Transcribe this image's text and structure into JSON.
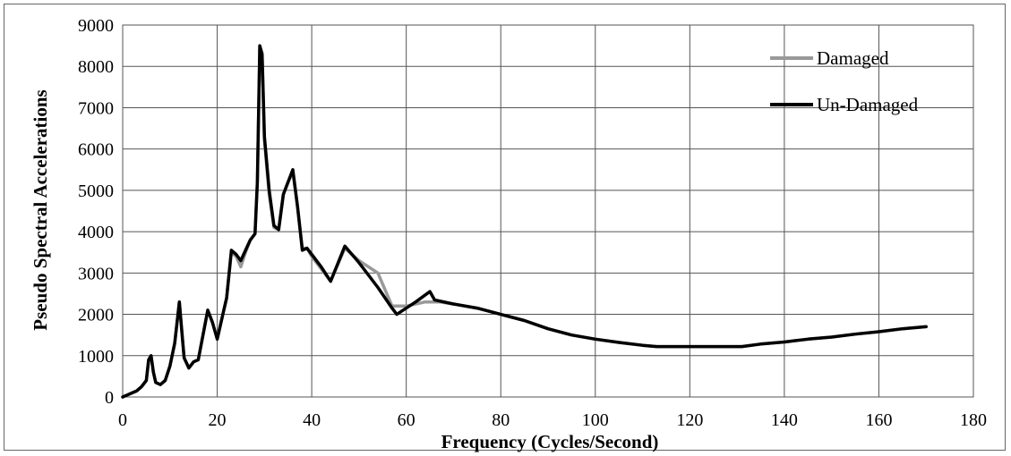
{
  "chart_data": {
    "type": "line",
    "title": "",
    "xlabel": "Frequency (Cycles/Second)",
    "ylabel": "Pseudo Spectral Accelerations",
    "xlim": [
      0,
      180
    ],
    "ylim": [
      0,
      9000
    ],
    "xticks": [
      0,
      20,
      40,
      60,
      80,
      100,
      120,
      140,
      160,
      180
    ],
    "yticks": [
      0,
      1000,
      2000,
      3000,
      4000,
      5000,
      6000,
      7000,
      8000,
      9000
    ],
    "grid": true,
    "legend_position": "top-right",
    "series": [
      {
        "name": "Damaged",
        "color": "#999999",
        "x": [
          0,
          1,
          2,
          3,
          4,
          5,
          5.5,
          6,
          6.5,
          7,
          8,
          9,
          10,
          11,
          12,
          12.5,
          13,
          14,
          15,
          16,
          17,
          18,
          19,
          20,
          21,
          22,
          23,
          24,
          25,
          26,
          27,
          28,
          28.5,
          29,
          29.5,
          30,
          31,
          32,
          33,
          34,
          35,
          36,
          37,
          38,
          39,
          40,
          42,
          44,
          47,
          50,
          54,
          57,
          60,
          64,
          65,
          67,
          70,
          75,
          80,
          85,
          90,
          95,
          100,
          105,
          110,
          113,
          115,
          120,
          125,
          131,
          135,
          140,
          145,
          150,
          155,
          160,
          165,
          170
        ],
        "y": [
          0,
          50,
          100,
          150,
          250,
          400,
          900,
          1000,
          600,
          350,
          300,
          400,
          750,
          1300,
          2300,
          1600,
          950,
          700,
          850,
          900,
          1500,
          2100,
          1800,
          1400,
          1900,
          2400,
          3500,
          3400,
          3150,
          3500,
          3800,
          3950,
          5200,
          8450,
          8200,
          6200,
          4900,
          4100,
          4050,
          4900,
          5200,
          5450,
          4600,
          3600,
          3600,
          3400,
          3100,
          2800,
          3600,
          3300,
          3000,
          2200,
          2200,
          2300,
          2300,
          2300,
          2250,
          2150,
          2000,
          1850,
          1650,
          1500,
          1400,
          1320,
          1250,
          1220,
          1220,
          1220,
          1220,
          1220,
          1280,
          1330,
          1400,
          1450,
          1520,
          1580,
          1650,
          1700
        ]
      },
      {
        "name": "Un-Damaged",
        "color": "#000000",
        "x": [
          0,
          1,
          2,
          3,
          4,
          5,
          5.5,
          6,
          6.5,
          7,
          8,
          9,
          10,
          11,
          12,
          12.5,
          13,
          14,
          15,
          16,
          17,
          18,
          19,
          20,
          21,
          22,
          23,
          24,
          25,
          26,
          27,
          28,
          28.5,
          29,
          29.5,
          30,
          31,
          32,
          33,
          34,
          35,
          36,
          37,
          38,
          39,
          40,
          42,
          44,
          47,
          50,
          54,
          57,
          58,
          62,
          65,
          66,
          70,
          75,
          80,
          85,
          90,
          95,
          100,
          105,
          110,
          113,
          115,
          120,
          125,
          131,
          135,
          140,
          145,
          150,
          155,
          160,
          165,
          170
        ],
        "y": [
          0,
          50,
          100,
          150,
          250,
          400,
          900,
          1000,
          600,
          350,
          300,
          400,
          750,
          1300,
          2300,
          1600,
          950,
          700,
          850,
          900,
          1500,
          2100,
          1800,
          1400,
          1900,
          2400,
          3550,
          3450,
          3300,
          3550,
          3800,
          3950,
          5200,
          8500,
          8300,
          6300,
          5000,
          4150,
          4050,
          4900,
          5200,
          5500,
          4600,
          3550,
          3600,
          3450,
          3150,
          2800,
          3650,
          3250,
          2650,
          2150,
          2000,
          2300,
          2550,
          2350,
          2250,
          2150,
          2000,
          1850,
          1650,
          1500,
          1400,
          1320,
          1250,
          1220,
          1220,
          1220,
          1220,
          1220,
          1280,
          1330,
          1400,
          1450,
          1520,
          1580,
          1650,
          1700
        ]
      }
    ]
  }
}
